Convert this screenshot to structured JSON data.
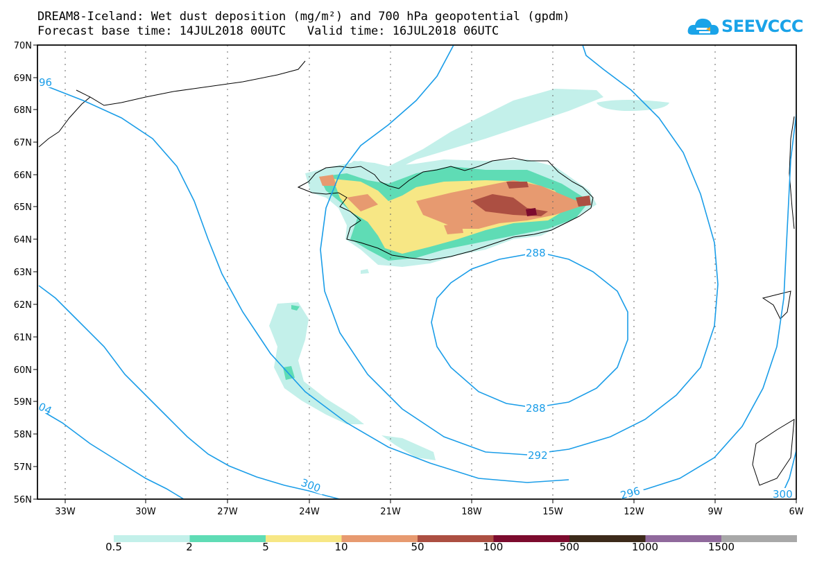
{
  "header": {
    "title_line1": "DREAM8-Iceland: Wet dust deposition (mg/m²) and 700 hPa geopotential (gpdm)",
    "title_line2": "Forecast base time: 14JUL2018 00UTC   Valid time: 16JUL2018 06UTC"
  },
  "logo": {
    "text": "SEEVCCC",
    "color": "#1aa3e8"
  },
  "axes": {
    "lat_labels": [
      "70N",
      "69N",
      "68N",
      "67N",
      "66N",
      "65N",
      "64N",
      "63N",
      "62N",
      "61N",
      "60N",
      "59N",
      "58N",
      "57N",
      "56N"
    ],
    "lon_labels": [
      "33W",
      "30W",
      "27W",
      "24W",
      "21W",
      "18W",
      "15W",
      "12W",
      "9W",
      "6W"
    ]
  },
  "contours": {
    "line_color": "#1a9de8",
    "labels": [
      "96",
      "288",
      "288",
      "292",
      "300",
      "296",
      "300",
      "04"
    ]
  },
  "colorbar": {
    "labels": [
      "0.5",
      "2",
      "5",
      "10",
      "50",
      "100",
      "500",
      "1000",
      "1500"
    ],
    "colors": [
      "#c3f0ea",
      "#5fdcb5",
      "#f7e785",
      "#e79a70",
      "#ac4f42",
      "#7c0b2e",
      "#3c2a1a",
      "#90699c",
      "#a8a8a8"
    ]
  }
}
